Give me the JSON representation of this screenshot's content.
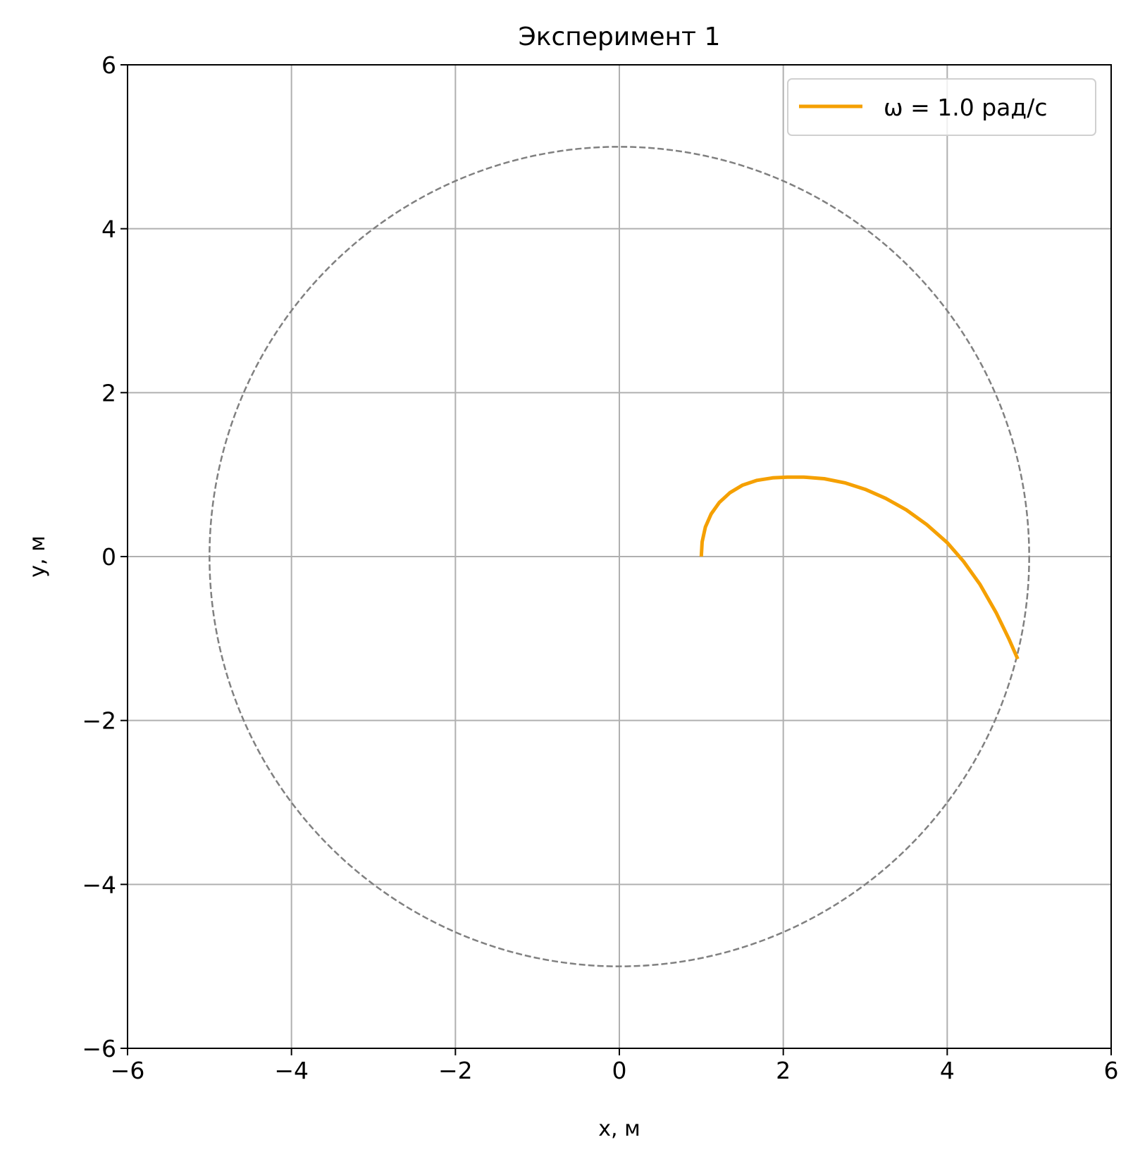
{
  "chart_data": {
    "type": "line",
    "title": "Эксперимент 1",
    "xlabel": "x, м",
    "ylabel": "y, м",
    "xlim": [
      -6,
      6
    ],
    "ylim": [
      -6,
      6
    ],
    "grid": true,
    "legend_position": "top-right",
    "xticks": [
      {
        "value": -6,
        "label": "−6"
      },
      {
        "value": -4,
        "label": "−4"
      },
      {
        "value": -2,
        "label": "−2"
      },
      {
        "value": 0,
        "label": "0"
      },
      {
        "value": 2,
        "label": "2"
      },
      {
        "value": 4,
        "label": "4"
      },
      {
        "value": 6,
        "label": "6"
      }
    ],
    "yticks": [
      {
        "value": -6,
        "label": "−6"
      },
      {
        "value": -4,
        "label": "−4"
      },
      {
        "value": -2,
        "label": "−2"
      },
      {
        "value": 0,
        "label": "0"
      },
      {
        "value": 2,
        "label": "2"
      },
      {
        "value": 4,
        "label": "4"
      },
      {
        "value": 6,
        "label": "6"
      }
    ],
    "reference_circle": {
      "center": [
        0,
        0
      ],
      "radius": 5,
      "style": "dashed",
      "color": "#808080"
    },
    "series": [
      {
        "name": "ω = 1.0 рад/с",
        "color": "#f5a000",
        "x": [
          1.0,
          1.01,
          1.05,
          1.12,
          1.22,
          1.35,
          1.5,
          1.68,
          1.87,
          2.05,
          2.25,
          2.5,
          2.75,
          3.0,
          3.25,
          3.5,
          3.75,
          4.0,
          4.2,
          4.4,
          4.6,
          4.75,
          4.86
        ],
        "y": [
          0.0,
          0.18,
          0.36,
          0.52,
          0.66,
          0.78,
          0.87,
          0.93,
          0.96,
          0.97,
          0.97,
          0.95,
          0.9,
          0.82,
          0.71,
          0.57,
          0.39,
          0.17,
          -0.06,
          -0.34,
          -0.69,
          -1.0,
          -1.25
        ]
      }
    ]
  }
}
